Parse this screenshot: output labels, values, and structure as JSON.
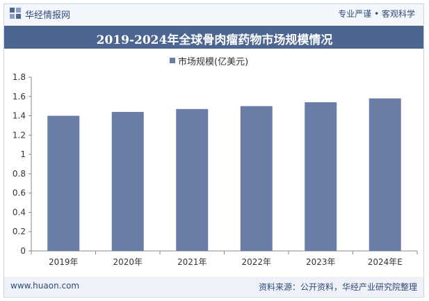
{
  "header": {
    "brand": "华经情报网",
    "slogan": "专业严谨 • 客观科学"
  },
  "chart_data": {
    "type": "bar",
    "title": "2019-2024年全球骨肉瘤药物市场规模情况",
    "categories": [
      "2019年",
      "2020年",
      "2021年",
      "2022年",
      "2023年",
      "2024年E"
    ],
    "series": [
      {
        "name": "市场规模(亿美元)",
        "values": [
          1.4,
          1.44,
          1.47,
          1.5,
          1.54,
          1.58
        ]
      }
    ],
    "yticks": [
      "0",
      "0.2",
      "0.4",
      "0.6",
      "0.8",
      "1",
      "1.2",
      "1.4",
      "1.6",
      "1.8"
    ],
    "ylim": [
      0,
      1.8
    ],
    "grid": false,
    "legend_position": "top",
    "bar_color": "#6a7da6"
  },
  "footer": {
    "site": "www.huaon.com",
    "source": "资料来源：公开资料，华经产业研究院整理"
  }
}
